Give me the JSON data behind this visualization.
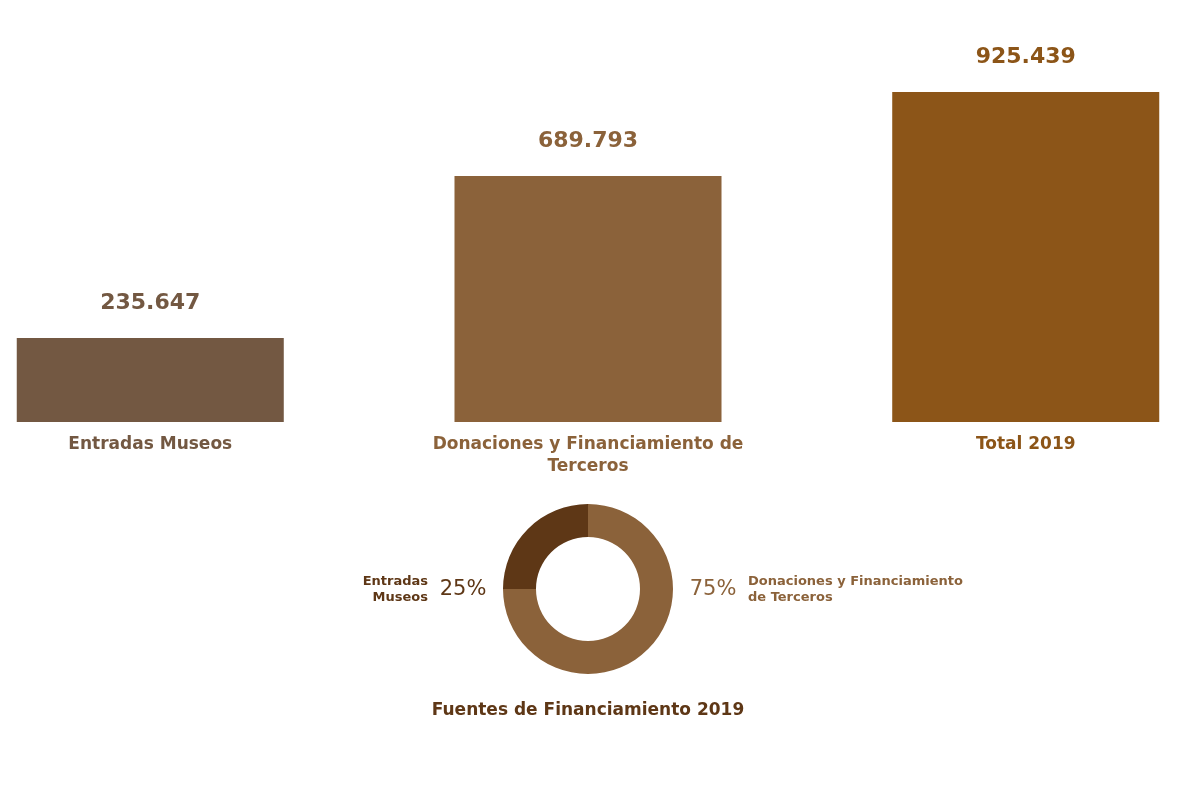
{
  "chart_data": [
    {
      "type": "bar",
      "categories": [
        "Entradas Museos",
        "Donaciones y Financiamiento de Terceros",
        "Total 2019"
      ],
      "values": [
        235647,
        689793,
        925439
      ],
      "value_labels": [
        "235.647",
        "689.793",
        "925.439"
      ],
      "colors": [
        "#735842",
        "#8b623a",
        "#8c5518"
      ]
    },
    {
      "type": "donut",
      "title": "Fuentes de Financiamiento 2019",
      "categories": [
        "Entradas Museos",
        "Donaciones y Financiamiento de Terceros"
      ],
      "values": [
        25,
        75
      ],
      "value_labels": [
        "25%",
        "75%"
      ],
      "colors": [
        "#5e3716",
        "#8b623a"
      ]
    }
  ]
}
